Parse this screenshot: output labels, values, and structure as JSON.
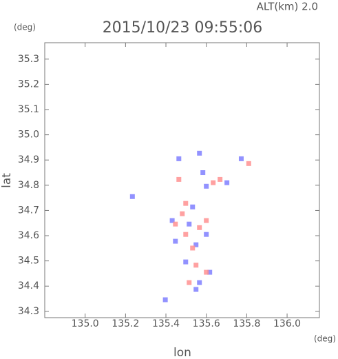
{
  "chart_data": {
    "type": "scatter",
    "title": "2015/10/23 09:55:06",
    "altitude_label": "ALT(km) 2.0",
    "x_label": "lon",
    "y_label": "lat",
    "x_unit": "(deg)",
    "y_unit": "(deg)",
    "xlim": [
      134.8,
      136.16
    ],
    "ylim": [
      34.275,
      35.365
    ],
    "xticks": [
      {
        "value": 135.0,
        "label": "135.0"
      },
      {
        "value": 135.2,
        "label": "135.2"
      },
      {
        "value": 135.4,
        "label": "135.4"
      },
      {
        "value": 135.6,
        "label": "135.6"
      },
      {
        "value": 135.8,
        "label": "135.8"
      },
      {
        "value": 136.0,
        "label": "136.0"
      }
    ],
    "yticks": [
      34.3,
      34.4,
      34.5,
      34.6,
      34.7,
      34.8,
      34.9,
      {
        "value": 35.0,
        "label": "35.0"
      },
      35.1,
      35.2,
      35.3
    ],
    "series": [
      {
        "color": "#7f7fff",
        "x": [
          135.566,
          135.773,
          135.234,
          135.549,
          135.566,
          135.397,
          135.498,
          135.6,
          135.464,
          135.6,
          135.431,
          135.532,
          135.617,
          135.583,
          135.702,
          135.447,
          135.549,
          135.515
        ],
        "y": [
          34.927,
          34.905,
          34.755,
          34.564,
          34.414,
          34.346,
          34.496,
          34.605,
          34.905,
          34.796,
          34.66,
          34.714,
          34.455,
          34.85,
          34.81,
          34.578,
          34.387,
          34.646
        ]
      },
      {
        "color": "#ff9090",
        "x": [
          135.481,
          135.6,
          135.498,
          135.515,
          135.549,
          135.634,
          135.81,
          135.464,
          135.566,
          135.532,
          135.447,
          135.6,
          135.498,
          135.668
        ],
        "y": [
          34.687,
          34.66,
          34.605,
          34.414,
          34.483,
          34.81,
          34.886,
          34.823,
          34.632,
          34.551,
          34.646,
          34.455,
          34.728,
          34.823
        ]
      }
    ]
  }
}
